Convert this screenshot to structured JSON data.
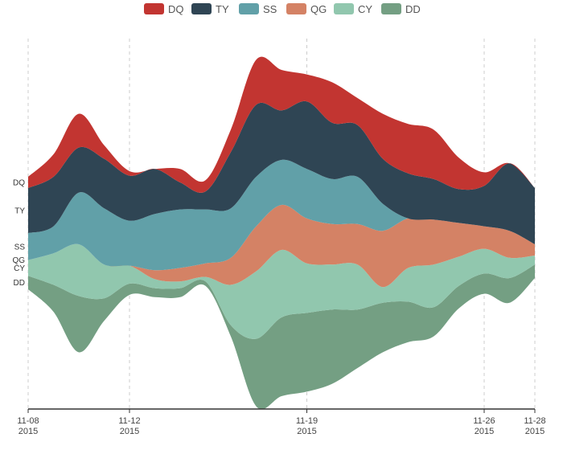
{
  "chart_data": {
    "type": "area",
    "layout": "streamgraph",
    "legend_position": "top-center",
    "grid": "vertical-dashed",
    "x": [
      "2015-11-08",
      "2015-11-09",
      "2015-11-10",
      "2015-11-11",
      "2015-11-12",
      "2015-11-13",
      "2015-11-14",
      "2015-11-15",
      "2015-11-16",
      "2015-11-17",
      "2015-11-18",
      "2015-11-19",
      "2015-11-20",
      "2015-11-21",
      "2015-11-22",
      "2015-11-23",
      "2015-11-24",
      "2015-11-25",
      "2015-11-26",
      "2015-11-27",
      "2015-11-28"
    ],
    "xlim": [
      "2015-11-08",
      "2015-11-28"
    ],
    "x_ticks": [
      {
        "date": "2015-11-08",
        "line1": "11-08",
        "line2": "2015"
      },
      {
        "date": "2015-11-12",
        "line1": "11-12",
        "line2": "2015"
      },
      {
        "date": "2015-11-19",
        "line1": "11-19",
        "line2": "2015"
      },
      {
        "date": "2015-11-26",
        "line1": "11-26",
        "line2": "2015"
      },
      {
        "date": "2015-11-28",
        "line1": "11-28",
        "line2": "2015"
      }
    ],
    "series": [
      {
        "name": "DD",
        "color": "#749f83",
        "values": [
          6,
          12,
          25,
          10,
          5,
          4,
          4,
          2,
          5,
          30,
          35,
          35,
          33,
          26,
          22,
          18,
          13,
          10,
          9,
          11,
          6
        ]
      },
      {
        "name": "CY",
        "color": "#91c7ae",
        "values": [
          7,
          14,
          23,
          15,
          8,
          4,
          3,
          2,
          18,
          30,
          30,
          22,
          20,
          20,
          7,
          15,
          19,
          13,
          11,
          9,
          4
        ]
      },
      {
        "name": "QG",
        "color": "#d48265",
        "values": [
          0,
          0,
          0,
          0,
          0,
          4,
          6,
          6,
          12,
          20,
          20,
          20,
          18,
          18,
          25,
          22,
          20,
          15,
          10,
          12,
          5
        ]
      },
      {
        "name": "SS",
        "color": "#61a0a8",
        "values": [
          12,
          12,
          23,
          25,
          20,
          25,
          26,
          24,
          22,
          22,
          20,
          22,
          20,
          21,
          12,
          0,
          0,
          0,
          0,
          0,
          0
        ]
      },
      {
        "name": "TY",
        "color": "#2f4554",
        "values": [
          20,
          22,
          20,
          22,
          20,
          20,
          12,
          8,
          25,
          32,
          22,
          30,
          25,
          23,
          20,
          20,
          18,
          15,
          18,
          30,
          25
        ]
      },
      {
        "name": "DQ",
        "color": "#c23531",
        "values": [
          5,
          10,
          15,
          6,
          2,
          0,
          6,
          5,
          10,
          20,
          18,
          12,
          18,
          12,
          20,
          22,
          22,
          14,
          6,
          0,
          0
        ]
      }
    ]
  }
}
